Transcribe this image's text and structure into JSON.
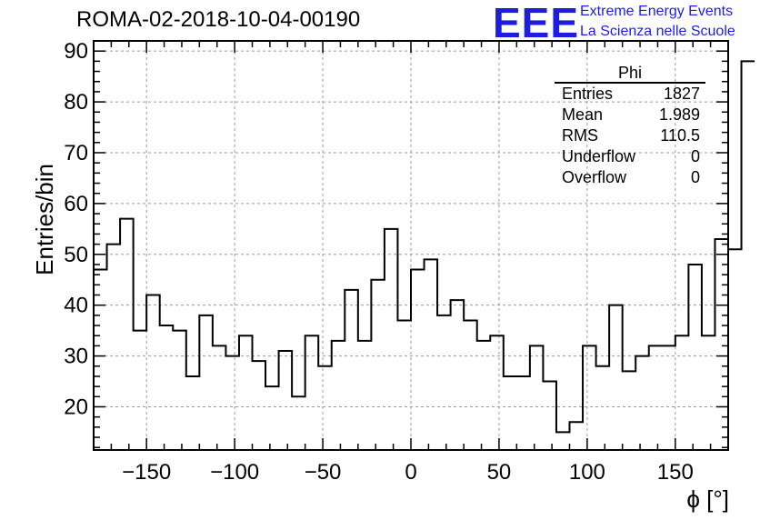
{
  "logo": {
    "mark": "EEE",
    "line1": "Extreme Energy Events",
    "line2": "La Scienza nelle Scuole",
    "color": "#1d1de0"
  },
  "stats": {
    "title": "Phi",
    "rows": [
      {
        "label": "Entries",
        "value": "1827"
      },
      {
        "label": "Mean",
        "value": "1.989"
      },
      {
        "label": "RMS",
        "value": "110.5"
      },
      {
        "label": "Underflow",
        "value": "0"
      },
      {
        "label": "Overflow",
        "value": "0"
      }
    ]
  },
  "chart_data": {
    "type": "bar",
    "subtype": "step-histogram",
    "title": "ROMA-02-2018-10-04-00190",
    "xlabel": "ϕ [°]",
    "ylabel": "Entries/bin",
    "xlim": [
      -180,
      180
    ],
    "ylim": [
      11.5,
      92
    ],
    "bin_width": 7.5,
    "x_ticks": [
      -150,
      -100,
      -50,
      0,
      50,
      100,
      150
    ],
    "x_tick_labels": [
      "−150",
      "−100",
      "−50",
      "0",
      "50",
      "100",
      "150"
    ],
    "y_ticks": [
      20,
      30,
      40,
      50,
      60,
      70,
      80,
      90
    ],
    "grid": true,
    "line_color": "#000000",
    "values": [
      47,
      52,
      57,
      35,
      42,
      36,
      35,
      26,
      38,
      32,
      30,
      34,
      29,
      24,
      31,
      22,
      34,
      28,
      33,
      43,
      33,
      45,
      55,
      37,
      47,
      49,
      38,
      41,
      37,
      33,
      34,
      26,
      26,
      32,
      25,
      15,
      17,
      32,
      28,
      40,
      27,
      30,
      32,
      32,
      34,
      48,
      34,
      53,
      51,
      88
    ]
  }
}
